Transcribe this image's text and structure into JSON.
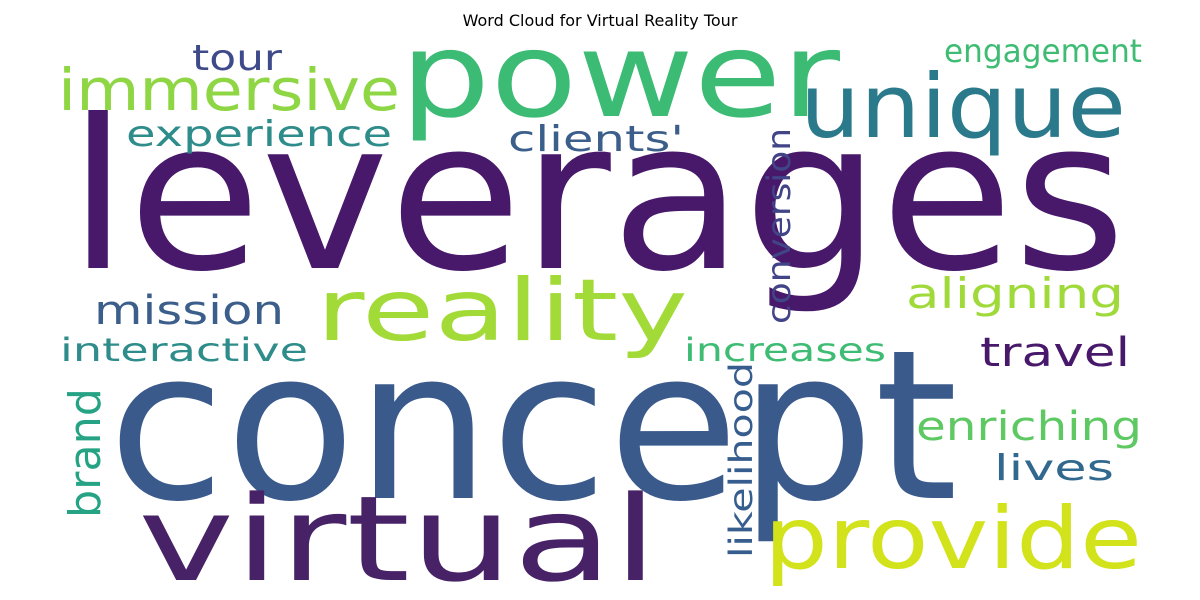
{
  "chart_data": {
    "type": "wordcloud",
    "title": "Word Cloud for Virtual Reality Tour",
    "words": [
      {
        "text": "leverages",
        "color": "#48186a"
      },
      {
        "text": "concept",
        "color": "#3b5a8c"
      },
      {
        "text": "power",
        "color": "#3bbb74"
      },
      {
        "text": "virtual",
        "color": "#472266"
      },
      {
        "text": "reality",
        "color": "#a2da37"
      },
      {
        "text": "unique",
        "color": "#2b7a8c"
      },
      {
        "text": "provide",
        "color": "#d2e21b"
      },
      {
        "text": "immersive",
        "color": "#8ed644"
      },
      {
        "text": "experience",
        "color": "#2e8c8a"
      },
      {
        "text": "tour",
        "color": "#3e4a89"
      },
      {
        "text": "clients'",
        "color": "#3b5e8b"
      },
      {
        "text": "engagement",
        "color": "#3fbc73"
      },
      {
        "text": "conversion",
        "color": "#414487"
      },
      {
        "text": "aligning",
        "color": "#9fda3a"
      },
      {
        "text": "mission",
        "color": "#3b5e8b"
      },
      {
        "text": "interactive",
        "color": "#2e8c8a"
      },
      {
        "text": "increases",
        "color": "#3fbc73"
      },
      {
        "text": "travel",
        "color": "#48186a"
      },
      {
        "text": "brand",
        "color": "#26a384"
      },
      {
        "text": "likelihood",
        "color": "#365d8d"
      },
      {
        "text": "enriching",
        "color": "#5ec962"
      },
      {
        "text": "lives",
        "color": "#31688e"
      }
    ]
  }
}
